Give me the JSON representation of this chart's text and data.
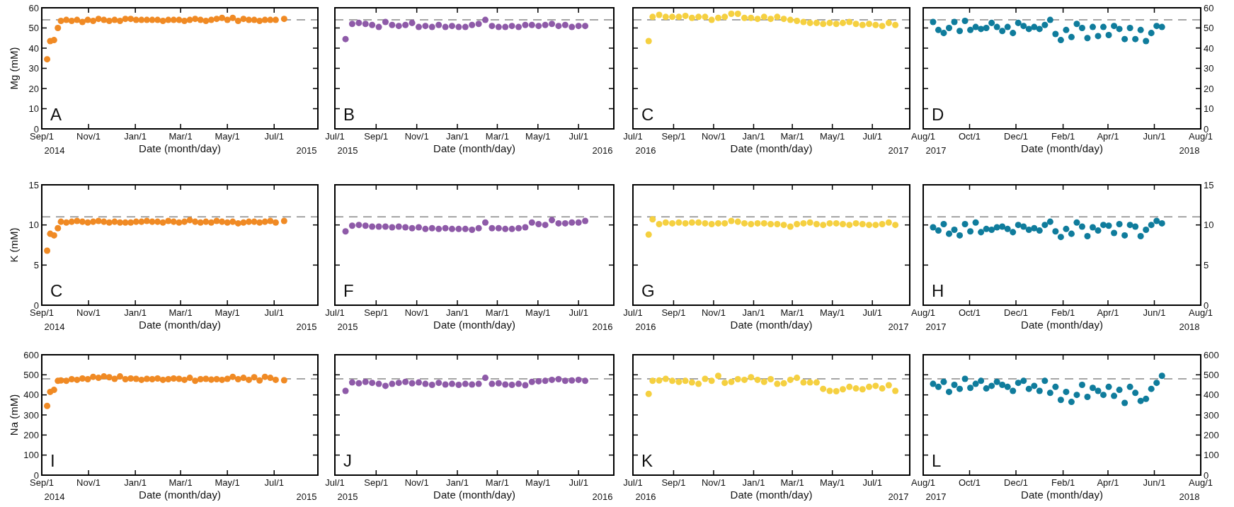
{
  "chart_data": [
    {
      "type": "scatter",
      "ylabel": "Mg (mM)",
      "xlabel": "Date (month/day)",
      "annotations": [
        "A",
        "2014",
        "2015"
      ],
      "marker": "circle",
      "color": "#f08a24",
      "x": [
        "2014-09-08",
        "2014-09-12",
        "2014-09-17",
        "2014-09-22",
        "2014-09-26",
        "2014-10-03",
        "2014-10-10",
        "2014-10-17",
        "2014-10-24",
        "2014-10-31",
        "2014-11-07",
        "2014-11-14",
        "2014-11-21",
        "2014-11-28",
        "2014-12-05",
        "2014-12-12",
        "2014-12-19",
        "2014-12-26",
        "2015-01-02",
        "2015-01-09",
        "2015-01-16",
        "2015-01-23",
        "2015-01-30",
        "2015-02-06",
        "2015-02-13",
        "2015-02-20",
        "2015-02-27",
        "2015-03-06",
        "2015-03-13",
        "2015-03-20",
        "2015-03-27",
        "2015-04-03",
        "2015-04-10",
        "2015-04-17",
        "2015-04-24",
        "2015-05-01",
        "2015-05-08",
        "2015-05-15",
        "2015-05-22",
        "2015-05-29",
        "2015-06-05",
        "2015-06-12",
        "2015-06-19",
        "2015-06-26",
        "2015-07-03",
        "2015-07-14"
      ],
      "values": [
        34.5,
        43.5,
        44,
        50,
        53.5,
        54,
        53.5,
        54,
        53,
        54,
        53.5,
        54.5,
        54,
        53.5,
        54,
        53.5,
        54.5,
        54.5,
        54,
        54,
        54,
        54,
        54,
        53.5,
        54,
        54,
        54,
        53.5,
        54,
        54.5,
        54,
        53.5,
        54,
        54.5,
        55,
        54,
        55,
        53.5,
        54.5,
        54,
        54,
        53.5,
        54,
        54,
        54,
        54.5
      ],
      "xlim": [
        "2014-09-01",
        "2015-08-27"
      ],
      "xticks": [
        {
          "value": "2014-09-01",
          "label": "Sep/1"
        },
        {
          "value": "2014-11-01",
          "label": "Nov/1"
        },
        {
          "value": "2015-01-01",
          "label": "Jan/1"
        },
        {
          "value": "2015-03-01",
          "label": "Mar/1"
        },
        {
          "value": "2015-05-01",
          "label": "May/1"
        },
        {
          "value": "2015-07-01",
          "label": "Jul/1"
        }
      ],
      "ylim": [
        0,
        60
      ],
      "yticks": [
        0,
        10,
        20,
        30,
        40,
        50,
        60
      ],
      "ref_lines": [
        {
          "axis": "y",
          "value": 54,
          "color": "#888888",
          "line_style": "dashed"
        }
      ]
    },
    {
      "type": "scatter",
      "xlabel": "Date (month/day)",
      "annotations": [
        "B",
        "2015",
        "2016"
      ],
      "marker": "circle",
      "color": "#8e5aa8",
      "tick_labels": "x",
      "x": [
        "2015-07-17",
        "2015-07-27",
        "2015-08-06",
        "2015-08-16",
        "2015-08-26",
        "2015-09-05",
        "2015-09-15",
        "2015-09-25",
        "2015-10-05",
        "2015-10-15",
        "2015-10-25",
        "2015-11-04",
        "2015-11-14",
        "2015-11-24",
        "2015-12-04",
        "2015-12-14",
        "2015-12-24",
        "2016-01-03",
        "2016-01-13",
        "2016-01-23",
        "2016-02-02",
        "2016-02-12",
        "2016-02-22",
        "2016-03-03",
        "2016-03-13",
        "2016-03-23",
        "2016-04-02",
        "2016-04-12",
        "2016-04-22",
        "2016-05-02",
        "2016-05-12",
        "2016-05-22",
        "2016-06-01",
        "2016-06-11",
        "2016-06-21",
        "2016-07-01",
        "2016-07-11"
      ],
      "values": [
        44.5,
        52,
        52.5,
        52,
        51.5,
        50.5,
        53,
        51.5,
        51,
        51.5,
        52.5,
        50.5,
        51,
        50.5,
        51.5,
        50.5,
        51,
        50.5,
        50.5,
        51.5,
        52,
        54,
        51,
        50.5,
        50.5,
        51,
        50.5,
        51.5,
        51.5,
        51,
        51.5,
        52,
        51,
        51.5,
        50.5,
        51,
        51
      ],
      "xlim": [
        "2015-07-01",
        "2016-08-23"
      ],
      "xticks": [
        {
          "value": "2015-07-01",
          "label": "Jul/1"
        },
        {
          "value": "2015-09-01",
          "label": "Sep/1"
        },
        {
          "value": "2015-11-01",
          "label": "Nov/1"
        },
        {
          "value": "2016-01-01",
          "label": "Jan/1"
        },
        {
          "value": "2016-03-01",
          "label": "Mar/1"
        },
        {
          "value": "2016-05-01",
          "label": "May/1"
        },
        {
          "value": "2016-07-01",
          "label": "Jul/1"
        }
      ],
      "ylim": [
        0,
        60
      ],
      "yticks": [
        0,
        10,
        20,
        30,
        40,
        50,
        60
      ],
      "ref_lines": [
        {
          "axis": "y",
          "value": 54,
          "color": "#888888",
          "line_style": "dashed"
        }
      ]
    },
    {
      "type": "scatter",
      "xlabel": "Date (month/day)",
      "annotations": [
        "C",
        "2016",
        "2017"
      ],
      "marker": "circle",
      "color": "#f5d040",
      "tick_labels": "x",
      "x": [
        "2016-07-25",
        "2016-07-31",
        "2016-08-10",
        "2016-08-20",
        "2016-08-30",
        "2016-09-09",
        "2016-09-19",
        "2016-09-29",
        "2016-10-09",
        "2016-10-19",
        "2016-10-29",
        "2016-11-08",
        "2016-11-18",
        "2016-11-28",
        "2016-12-08",
        "2016-12-18",
        "2016-12-28",
        "2017-01-07",
        "2017-01-17",
        "2017-01-27",
        "2017-02-06",
        "2017-02-16",
        "2017-02-26",
        "2017-03-08",
        "2017-03-18",
        "2017-03-28",
        "2017-04-07",
        "2017-04-17",
        "2017-04-27",
        "2017-05-07",
        "2017-05-17",
        "2017-05-27",
        "2017-06-06",
        "2017-06-16",
        "2017-06-26",
        "2017-07-06",
        "2017-07-16",
        "2017-07-26",
        "2017-08-05"
      ],
      "values": [
        43.5,
        55.5,
        56.5,
        55.5,
        55.5,
        55.5,
        56,
        55,
        55.5,
        55.5,
        54,
        55,
        55.5,
        57,
        57,
        55,
        55,
        54.5,
        55.5,
        54.5,
        55.5,
        54.5,
        54,
        53.5,
        53,
        52.5,
        52.5,
        52,
        52.5,
        52,
        52.5,
        53,
        52,
        51.5,
        52,
        51.5,
        51,
        52.5,
        51.5
      ],
      "xlim": [
        "2016-07-01",
        "2017-08-27"
      ],
      "xticks": [
        {
          "value": "2016-07-01",
          "label": "Jul/1"
        },
        {
          "value": "2016-09-01",
          "label": "Sep/1"
        },
        {
          "value": "2016-11-01",
          "label": "Nov/1"
        },
        {
          "value": "2017-01-01",
          "label": "Jan/1"
        },
        {
          "value": "2017-03-01",
          "label": "Mar/1"
        },
        {
          "value": "2017-05-01",
          "label": "May/1"
        },
        {
          "value": "2017-07-01",
          "label": "Jul/1"
        }
      ],
      "ylim": [
        0,
        60
      ],
      "yticks": [
        0,
        10,
        20,
        30,
        40,
        50,
        60
      ],
      "ref_lines": [
        {
          "axis": "y",
          "value": 54,
          "color": "#888888",
          "line_style": "dashed"
        }
      ]
    },
    {
      "type": "scatter",
      "xlabel": "Date (month/day)",
      "annotations": [
        "D",
        "2017",
        "2018"
      ],
      "marker": "circle",
      "color": "#0f7c9c",
      "x": [
        "2017-08-14",
        "2017-08-21",
        "2017-08-28",
        "2017-09-04",
        "2017-09-11",
        "2017-09-18",
        "2017-09-25",
        "2017-10-02",
        "2017-10-09",
        "2017-10-16",
        "2017-10-23",
        "2017-10-30",
        "2017-11-06",
        "2017-11-13",
        "2017-11-20",
        "2017-11-27",
        "2017-12-04",
        "2017-12-11",
        "2017-12-18",
        "2017-12-25",
        "2018-01-01",
        "2018-01-08",
        "2018-01-15",
        "2018-01-22",
        "2018-01-29",
        "2018-02-05",
        "2018-02-12",
        "2018-02-19",
        "2018-02-26",
        "2018-03-05",
        "2018-03-12",
        "2018-03-19",
        "2018-03-26",
        "2018-04-02",
        "2018-04-09",
        "2018-04-16",
        "2018-04-23",
        "2018-04-30",
        "2018-05-07",
        "2018-05-14",
        "2018-05-21",
        "2018-05-28",
        "2018-06-04",
        "2018-06-11"
      ],
      "values": [
        53,
        49,
        47.5,
        50,
        53,
        48.5,
        53.5,
        49,
        50.5,
        49.5,
        50,
        52.5,
        50.5,
        48.5,
        50.5,
        47.5,
        52.5,
        51,
        49.5,
        50.5,
        49.5,
        51.5,
        54,
        47,
        44,
        49,
        45.5,
        52,
        50,
        45,
        50.5,
        46,
        50.5,
        46.5,
        51,
        49.5,
        44.5,
        50,
        44.5,
        49,
        43.5,
        47.5,
        51,
        50.5
      ],
      "xlim": [
        "2017-08-01",
        "2018-08-01"
      ],
      "xticks": [
        {
          "value": "2017-08-01",
          "label": "Aug/1"
        },
        {
          "value": "2017-10-01",
          "label": "Oct/1"
        },
        {
          "value": "2017-12-01",
          "label": "Dec/1"
        },
        {
          "value": "2018-02-01",
          "label": "Feb/1"
        },
        {
          "value": "2018-04-01",
          "label": "Apr/1"
        },
        {
          "value": "2018-06-01",
          "label": "Jun/1"
        },
        {
          "value": "2018-08-01",
          "label": "Aug/1"
        }
      ],
      "ylim": [
        0,
        60
      ],
      "yticks": [
        0,
        10,
        20,
        30,
        40,
        50,
        60
      ],
      "ref_lines": [
        {
          "axis": "y",
          "value": 54,
          "color": "#888888",
          "line_style": "dashed"
        }
      ]
    },
    {
      "type": "scatter",
      "ylabel": "K (mM)",
      "xlabel": "Date (month/day)",
      "annotations": [
        "C",
        "2014",
        "2015"
      ],
      "marker": "circle",
      "color": "#f08a24",
      "x": [
        "2014-09-08",
        "2014-09-12",
        "2014-09-17",
        "2014-09-22",
        "2014-09-26",
        "2014-10-03",
        "2014-10-10",
        "2014-10-17",
        "2014-10-24",
        "2014-10-31",
        "2014-11-07",
        "2014-11-14",
        "2014-11-21",
        "2014-11-28",
        "2014-12-05",
        "2014-12-12",
        "2014-12-19",
        "2014-12-26",
        "2015-01-02",
        "2015-01-09",
        "2015-01-16",
        "2015-01-23",
        "2015-01-30",
        "2015-02-06",
        "2015-02-13",
        "2015-02-20",
        "2015-02-27",
        "2015-03-06",
        "2015-03-13",
        "2015-03-20",
        "2015-03-27",
        "2015-04-03",
        "2015-04-10",
        "2015-04-17",
        "2015-04-24",
        "2015-05-01",
        "2015-05-08",
        "2015-05-15",
        "2015-05-22",
        "2015-05-29",
        "2015-06-05",
        "2015-06-12",
        "2015-06-19",
        "2015-06-26",
        "2015-07-03",
        "2015-07-14"
      ],
      "values": [
        6.8,
        8.9,
        8.7,
        9.6,
        10.4,
        10.3,
        10.4,
        10.5,
        10.4,
        10.3,
        10.4,
        10.5,
        10.4,
        10.3,
        10.4,
        10.3,
        10.3,
        10.3,
        10.4,
        10.4,
        10.5,
        10.4,
        10.4,
        10.3,
        10.5,
        10.4,
        10.3,
        10.4,
        10.6,
        10.4,
        10.3,
        10.4,
        10.3,
        10.5,
        10.4,
        10.3,
        10.4,
        10.2,
        10.3,
        10.4,
        10.4,
        10.3,
        10.4,
        10.5,
        10.3,
        10.5
      ],
      "xlim": [
        "2014-09-01",
        "2015-08-27"
      ],
      "xticks": [
        {
          "value": "2014-09-01",
          "label": "Sep/1"
        },
        {
          "value": "2014-11-01",
          "label": "Nov/1"
        },
        {
          "value": "2015-01-01",
          "label": "Jan/1"
        },
        {
          "value": "2015-03-01",
          "label": "Mar/1"
        },
        {
          "value": "2015-05-01",
          "label": "May/1"
        },
        {
          "value": "2015-07-01",
          "label": "Jul/1"
        }
      ],
      "ylim": [
        0,
        15
      ],
      "yticks": [
        0,
        5,
        10,
        15
      ],
      "ref_lines": [
        {
          "axis": "y",
          "value": 11,
          "color": "#888888",
          "line_style": "dashed"
        }
      ]
    },
    {
      "type": "scatter",
      "xlabel": "Date (month/day)",
      "annotations": [
        "F",
        "2015",
        "2016"
      ],
      "marker": "circle",
      "color": "#8e5aa8",
      "tick_labels": "x",
      "x": [
        "2015-07-17",
        "2015-07-27",
        "2015-08-06",
        "2015-08-16",
        "2015-08-26",
        "2015-09-05",
        "2015-09-15",
        "2015-09-25",
        "2015-10-05",
        "2015-10-15",
        "2015-10-25",
        "2015-11-04",
        "2015-11-14",
        "2015-11-24",
        "2015-12-04",
        "2015-12-14",
        "2015-12-24",
        "2016-01-03",
        "2016-01-13",
        "2016-01-23",
        "2016-02-02",
        "2016-02-12",
        "2016-02-22",
        "2016-03-03",
        "2016-03-13",
        "2016-03-23",
        "2016-04-02",
        "2016-04-12",
        "2016-04-22",
        "2016-05-02",
        "2016-05-12",
        "2016-05-22",
        "2016-06-01",
        "2016-06-11",
        "2016-06-21",
        "2016-07-01",
        "2016-07-11"
      ],
      "values": [
        9.2,
        9.9,
        10.0,
        9.9,
        9.8,
        9.8,
        9.8,
        9.7,
        9.8,
        9.7,
        9.6,
        9.7,
        9.5,
        9.6,
        9.5,
        9.6,
        9.5,
        9.5,
        9.5,
        9.4,
        9.6,
        10.3,
        9.6,
        9.6,
        9.5,
        9.5,
        9.6,
        9.7,
        10.3,
        10.1,
        10.0,
        10.6,
        10.2,
        10.2,
        10.3,
        10.3,
        10.5
      ],
      "xlim": [
        "2015-07-01",
        "2016-08-23"
      ],
      "xticks": [
        {
          "value": "2015-07-01",
          "label": "Jul/1"
        },
        {
          "value": "2015-09-01",
          "label": "Sep/1"
        },
        {
          "value": "2015-11-01",
          "label": "Nov/1"
        },
        {
          "value": "2016-01-01",
          "label": "Jan/1"
        },
        {
          "value": "2016-03-01",
          "label": "Mar/1"
        },
        {
          "value": "2016-05-01",
          "label": "May/1"
        },
        {
          "value": "2016-07-01",
          "label": "Jul/1"
        }
      ],
      "ylim": [
        0,
        15
      ],
      "yticks": [
        0,
        5,
        10,
        15
      ],
      "ref_lines": [
        {
          "axis": "y",
          "value": 11,
          "color": "#888888",
          "line_style": "dashed"
        }
      ]
    },
    {
      "type": "scatter",
      "xlabel": "Date (month/day)",
      "annotations": [
        "G",
        "2016",
        "2017"
      ],
      "marker": "circle",
      "color": "#f5d040",
      "tick_labels": "x",
      "x": [
        "2016-07-25",
        "2016-07-31",
        "2016-08-10",
        "2016-08-20",
        "2016-08-30",
        "2016-09-09",
        "2016-09-19",
        "2016-09-29",
        "2016-10-09",
        "2016-10-19",
        "2016-10-29",
        "2016-11-08",
        "2016-11-18",
        "2016-11-28",
        "2016-12-08",
        "2016-12-18",
        "2016-12-28",
        "2017-01-07",
        "2017-01-17",
        "2017-01-27",
        "2017-02-06",
        "2017-02-16",
        "2017-02-26",
        "2017-03-08",
        "2017-03-18",
        "2017-03-28",
        "2017-04-07",
        "2017-04-17",
        "2017-04-27",
        "2017-05-07",
        "2017-05-17",
        "2017-05-27",
        "2017-06-06",
        "2017-06-16",
        "2017-06-26",
        "2017-07-06",
        "2017-07-16",
        "2017-07-26",
        "2017-08-05"
      ],
      "values": [
        8.8,
        10.7,
        10.1,
        10.3,
        10.2,
        10.3,
        10.2,
        10.3,
        10.3,
        10.2,
        10.1,
        10.2,
        10.2,
        10.5,
        10.4,
        10.2,
        10.1,
        10.2,
        10.2,
        10.1,
        10.1,
        10.0,
        9.8,
        10.1,
        10.2,
        10.3,
        10.1,
        10.0,
        10.2,
        10.2,
        10.1,
        10.0,
        10.2,
        10.1,
        10.0,
        10.0,
        10.1,
        10.3,
        10.0
      ],
      "xlim": [
        "2016-07-01",
        "2017-08-27"
      ],
      "xticks": [
        {
          "value": "2016-07-01",
          "label": "Jul/1"
        },
        {
          "value": "2016-09-01",
          "label": "Sep/1"
        },
        {
          "value": "2016-11-01",
          "label": "Nov/1"
        },
        {
          "value": "2017-01-01",
          "label": "Jan/1"
        },
        {
          "value": "2017-03-01",
          "label": "Mar/1"
        },
        {
          "value": "2017-05-01",
          "label": "May/1"
        },
        {
          "value": "2017-07-01",
          "label": "Jul/1"
        }
      ],
      "ylim": [
        0,
        15
      ],
      "yticks": [
        0,
        5,
        10,
        15
      ],
      "ref_lines": [
        {
          "axis": "y",
          "value": 11,
          "color": "#888888",
          "line_style": "dashed"
        }
      ]
    },
    {
      "type": "scatter",
      "xlabel": "Date (month/day)",
      "annotations": [
        "H",
        "2017",
        "2018"
      ],
      "marker": "circle",
      "color": "#0f7c9c",
      "x": [
        "2017-08-14",
        "2017-08-21",
        "2017-08-28",
        "2017-09-04",
        "2017-09-11",
        "2017-09-18",
        "2017-09-25",
        "2017-10-02",
        "2017-10-09",
        "2017-10-16",
        "2017-10-23",
        "2017-10-30",
        "2017-11-06",
        "2017-11-13",
        "2017-11-20",
        "2017-11-27",
        "2017-12-04",
        "2017-12-11",
        "2017-12-18",
        "2017-12-25",
        "2018-01-01",
        "2018-01-08",
        "2018-01-15",
        "2018-01-22",
        "2018-01-29",
        "2018-02-05",
        "2018-02-12",
        "2018-02-19",
        "2018-02-26",
        "2018-03-05",
        "2018-03-12",
        "2018-03-19",
        "2018-03-26",
        "2018-04-02",
        "2018-04-09",
        "2018-04-16",
        "2018-04-23",
        "2018-04-30",
        "2018-05-07",
        "2018-05-14",
        "2018-05-21",
        "2018-05-28",
        "2018-06-04",
        "2018-06-11"
      ],
      "values": [
        9.7,
        9.3,
        10.1,
        8.9,
        9.4,
        8.7,
        10.1,
        9.2,
        10.3,
        9.1,
        9.5,
        9.4,
        9.7,
        9.8,
        9.5,
        9.1,
        10.0,
        9.8,
        9.4,
        9.6,
        9.3,
        10.0,
        10.4,
        9.2,
        8.5,
        9.5,
        8.9,
        10.3,
        9.8,
        8.6,
        9.7,
        9.3,
        10.0,
        9.9,
        9.0,
        10.1,
        8.7,
        10.0,
        9.8,
        8.6,
        9.4,
        10.0,
        10.5,
        10.2
      ],
      "xlim": [
        "2017-08-01",
        "2018-08-01"
      ],
      "xticks": [
        {
          "value": "2017-08-01",
          "label": "Aug/1"
        },
        {
          "value": "2017-10-01",
          "label": "Oct/1"
        },
        {
          "value": "2017-12-01",
          "label": "Dec/1"
        },
        {
          "value": "2018-02-01",
          "label": "Feb/1"
        },
        {
          "value": "2018-04-01",
          "label": "Apr/1"
        },
        {
          "value": "2018-06-01",
          "label": "Jun/1"
        },
        {
          "value": "2018-08-01",
          "label": "Aug/1"
        }
      ],
      "ylim": [
        0,
        15
      ],
      "yticks": [
        0,
        5,
        10,
        15
      ],
      "ref_lines": [
        {
          "axis": "y",
          "value": 11,
          "color": "#888888",
          "line_style": "dashed"
        }
      ]
    },
    {
      "type": "scatter",
      "ylabel": "Na (mM)",
      "xlabel": "Date (month/day)",
      "annotations": [
        "I",
        "2014",
        "2015"
      ],
      "marker": "circle",
      "color": "#f08a24",
      "x": [
        "2014-09-08",
        "2014-09-12",
        "2014-09-17",
        "2014-09-22",
        "2014-09-26",
        "2014-10-03",
        "2014-10-10",
        "2014-10-17",
        "2014-10-24",
        "2014-10-31",
        "2014-11-07",
        "2014-11-14",
        "2014-11-21",
        "2014-11-28",
        "2014-12-05",
        "2014-12-12",
        "2014-12-19",
        "2014-12-26",
        "2015-01-02",
        "2015-01-09",
        "2015-01-16",
        "2015-01-23",
        "2015-01-30",
        "2015-02-06",
        "2015-02-13",
        "2015-02-20",
        "2015-02-27",
        "2015-03-06",
        "2015-03-13",
        "2015-03-20",
        "2015-03-27",
        "2015-04-03",
        "2015-04-10",
        "2015-04-17",
        "2015-04-24",
        "2015-05-01",
        "2015-05-08",
        "2015-05-15",
        "2015-05-22",
        "2015-05-29",
        "2015-06-05",
        "2015-06-12",
        "2015-06-19",
        "2015-06-26",
        "2015-07-03",
        "2015-07-14"
      ],
      "values": [
        345,
        415,
        425,
        470,
        472,
        470,
        478,
        475,
        482,
        478,
        490,
        485,
        492,
        488,
        480,
        492,
        478,
        482,
        480,
        475,
        480,
        478,
        482,
        475,
        478,
        482,
        480,
        475,
        485,
        470,
        478,
        480,
        476,
        478,
        475,
        480,
        490,
        478,
        485,
        475,
        488,
        472,
        490,
        485,
        475,
        473
      ],
      "xlim": [
        "2014-09-01",
        "2015-08-27"
      ],
      "xticks": [
        {
          "value": "2014-09-01",
          "label": "Sep/1"
        },
        {
          "value": "2014-11-01",
          "label": "Nov/1"
        },
        {
          "value": "2015-01-01",
          "label": "Jan/1"
        },
        {
          "value": "2015-03-01",
          "label": "Mar/1"
        },
        {
          "value": "2015-05-01",
          "label": "May/1"
        },
        {
          "value": "2015-07-01",
          "label": "Jul/1"
        }
      ],
      "ylim": [
        0,
        600
      ],
      "yticks": [
        0,
        100,
        200,
        300,
        400,
        500,
        600
      ],
      "ref_lines": [
        {
          "axis": "y",
          "value": 480,
          "color": "#888888",
          "line_style": "dashed"
        }
      ]
    },
    {
      "type": "scatter",
      "xlabel": "Date (month/day)",
      "annotations": [
        "J",
        "2015",
        "2016"
      ],
      "marker": "circle",
      "color": "#8e5aa8",
      "tick_labels": "x",
      "x": [
        "2015-07-17",
        "2015-07-27",
        "2015-08-06",
        "2015-08-16",
        "2015-08-26",
        "2015-09-05",
        "2015-09-15",
        "2015-09-25",
        "2015-10-05",
        "2015-10-15",
        "2015-10-25",
        "2015-11-04",
        "2015-11-14",
        "2015-11-24",
        "2015-12-04",
        "2015-12-14",
        "2015-12-24",
        "2016-01-03",
        "2016-01-13",
        "2016-01-23",
        "2016-02-02",
        "2016-02-12",
        "2016-02-22",
        "2016-03-03",
        "2016-03-13",
        "2016-03-23",
        "2016-04-02",
        "2016-04-12",
        "2016-04-22",
        "2016-05-02",
        "2016-05-12",
        "2016-05-22",
        "2016-06-01",
        "2016-06-11",
        "2016-06-21",
        "2016-07-01",
        "2016-07-11"
      ],
      "values": [
        420,
        462,
        458,
        465,
        460,
        455,
        445,
        455,
        460,
        465,
        458,
        462,
        455,
        450,
        460,
        452,
        455,
        450,
        455,
        452,
        455,
        485,
        455,
        458,
        452,
        450,
        455,
        448,
        465,
        468,
        470,
        475,
        478,
        470,
        472,
        475,
        470
      ],
      "xlim": [
        "2015-07-01",
        "2016-08-23"
      ],
      "xticks": [
        {
          "value": "2015-07-01",
          "label": "Jul/1"
        },
        {
          "value": "2015-09-01",
          "label": "Sep/1"
        },
        {
          "value": "2015-11-01",
          "label": "Nov/1"
        },
        {
          "value": "2016-01-01",
          "label": "Jan/1"
        },
        {
          "value": "2016-03-01",
          "label": "Mar/1"
        },
        {
          "value": "2016-05-01",
          "label": "May/1"
        },
        {
          "value": "2016-07-01",
          "label": "Jul/1"
        }
      ],
      "ylim": [
        0,
        600
      ],
      "yticks": [
        0,
        100,
        200,
        300,
        400,
        500,
        600
      ],
      "ref_lines": [
        {
          "axis": "y",
          "value": 480,
          "color": "#888888",
          "line_style": "dashed"
        }
      ]
    },
    {
      "type": "scatter",
      "xlabel": "Date (month/day)",
      "annotations": [
        "K",
        "2016",
        "2017"
      ],
      "marker": "circle",
      "color": "#f5d040",
      "tick_labels": "x",
      "x": [
        "2016-07-25",
        "2016-07-31",
        "2016-08-10",
        "2016-08-20",
        "2016-08-30",
        "2016-09-09",
        "2016-09-19",
        "2016-09-29",
        "2016-10-09",
        "2016-10-19",
        "2016-10-29",
        "2016-11-08",
        "2016-11-18",
        "2016-11-28",
        "2016-12-08",
        "2016-12-18",
        "2016-12-28",
        "2017-01-07",
        "2017-01-17",
        "2017-01-27",
        "2017-02-06",
        "2017-02-16",
        "2017-02-26",
        "2017-03-08",
        "2017-03-18",
        "2017-03-28",
        "2017-04-07",
        "2017-04-17",
        "2017-04-27",
        "2017-05-07",
        "2017-05-17",
        "2017-05-27",
        "2017-06-06",
        "2017-06-16",
        "2017-06-26",
        "2017-07-06",
        "2017-07-16",
        "2017-07-26",
        "2017-08-05"
      ],
      "values": [
        405,
        470,
        472,
        480,
        470,
        465,
        470,
        462,
        455,
        480,
        470,
        495,
        460,
        465,
        478,
        475,
        488,
        475,
        465,
        478,
        455,
        458,
        475,
        485,
        462,
        462,
        462,
        430,
        420,
        418,
        428,
        440,
        432,
        428,
        440,
        445,
        432,
        448,
        420
      ],
      "xlim": [
        "2016-07-01",
        "2017-08-27"
      ],
      "xticks": [
        {
          "value": "2016-07-01",
          "label": "Jul/1"
        },
        {
          "value": "2016-09-01",
          "label": "Sep/1"
        },
        {
          "value": "2016-11-01",
          "label": "Nov/1"
        },
        {
          "value": "2017-01-01",
          "label": "Jan/1"
        },
        {
          "value": "2017-03-01",
          "label": "Mar/1"
        },
        {
          "value": "2017-05-01",
          "label": "May/1"
        },
        {
          "value": "2017-07-01",
          "label": "Jul/1"
        }
      ],
      "ylim": [
        0,
        600
      ],
      "yticks": [
        0,
        100,
        200,
        300,
        400,
        500,
        600
      ],
      "ref_lines": [
        {
          "axis": "y",
          "value": 480,
          "color": "#888888",
          "line_style": "dashed"
        }
      ]
    },
    {
      "type": "scatter",
      "xlabel": "Date (month/day)",
      "annotations": [
        "L",
        "2017",
        "2018"
      ],
      "marker": "circle",
      "color": "#0f7c9c",
      "x": [
        "2017-08-14",
        "2017-08-21",
        "2017-08-28",
        "2017-09-04",
        "2017-09-11",
        "2017-09-18",
        "2017-09-25",
        "2017-10-02",
        "2017-10-09",
        "2017-10-16",
        "2017-10-23",
        "2017-10-30",
        "2017-11-06",
        "2017-11-13",
        "2017-11-20",
        "2017-11-27",
        "2017-12-04",
        "2017-12-11",
        "2017-12-18",
        "2017-12-25",
        "2018-01-01",
        "2018-01-08",
        "2018-01-15",
        "2018-01-22",
        "2018-01-29",
        "2018-02-05",
        "2018-02-12",
        "2018-02-19",
        "2018-02-26",
        "2018-03-05",
        "2018-03-12",
        "2018-03-19",
        "2018-03-26",
        "2018-04-02",
        "2018-04-09",
        "2018-04-16",
        "2018-04-23",
        "2018-04-30",
        "2018-05-07",
        "2018-05-14",
        "2018-05-21",
        "2018-05-28",
        "2018-06-04",
        "2018-06-11"
      ],
      "values": [
        455,
        440,
        465,
        415,
        450,
        430,
        480,
        435,
        455,
        470,
        432,
        445,
        465,
        450,
        440,
        420,
        460,
        470,
        430,
        445,
        420,
        470,
        410,
        440,
        375,
        415,
        365,
        400,
        450,
        390,
        435,
        420,
        400,
        440,
        395,
        425,
        360,
        440,
        410,
        370,
        380,
        430,
        460,
        495
      ],
      "xlim": [
        "2017-08-01",
        "2018-08-01"
      ],
      "xticks": [
        {
          "value": "2017-08-01",
          "label": "Aug/1"
        },
        {
          "value": "2017-10-01",
          "label": "Oct/1"
        },
        {
          "value": "2017-12-01",
          "label": "Dec/1"
        },
        {
          "value": "2018-02-01",
          "label": "Feb/1"
        },
        {
          "value": "2018-04-01",
          "label": "Apr/1"
        },
        {
          "value": "2018-06-01",
          "label": "Jun/1"
        },
        {
          "value": "2018-08-01",
          "label": "Aug/1"
        }
      ],
      "ylim": [
        0,
        600
      ],
      "yticks": [
        0,
        100,
        200,
        300,
        400,
        500,
        600
      ],
      "ref_lines": [
        {
          "axis": "y",
          "value": 480,
          "color": "#888888",
          "line_style": "dashed"
        }
      ]
    }
  ]
}
